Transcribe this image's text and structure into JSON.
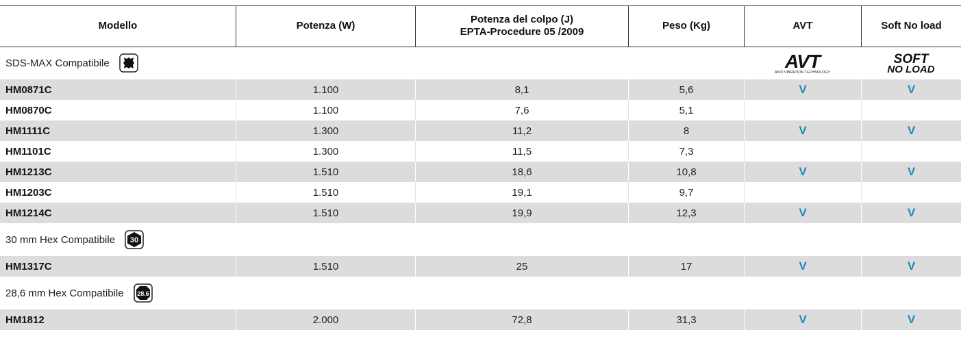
{
  "table": {
    "headers": [
      [
        "Modello"
      ],
      [
        "Potenza (W)"
      ],
      [
        "Potenza del colpo (J)",
        "EPTA-Procedure 05 /2009"
      ],
      [
        "Peso (Kg)"
      ],
      [
        "AVT"
      ],
      [
        "Soft No load"
      ]
    ],
    "sections": [
      {
        "title": "SDS-MAX Compatibile",
        "avt_logo": {
          "text": "AVT",
          "tagline": "ANTI VIBRATION TECHNOLOGY"
        },
        "soft_logo": [
          "SOFT",
          "NO LOAD"
        ],
        "rows": [
          [
            "HM0871C",
            "1.100",
            "8,1",
            "5,6",
            "V",
            "V"
          ],
          [
            "HM0870C",
            "1.100",
            "7,6",
            "5,1",
            null,
            null
          ],
          [
            "HM1111C",
            "1.300",
            "11,2",
            "8",
            "V",
            "V"
          ],
          [
            "HM1101C",
            "1.300",
            "11,5",
            "7,3",
            null,
            null
          ],
          [
            "HM1213C",
            "1.510",
            "18,6",
            "10,8",
            "V",
            "V"
          ],
          [
            "HM1203C",
            "1.510",
            "19,1",
            "9,7",
            null,
            null
          ],
          [
            "HM1214C",
            "1.510",
            "19,9",
            "12,3",
            "V",
            "V"
          ]
        ]
      },
      {
        "title": "30 mm Hex Compatibile",
        "badge": "30",
        "rows": [
          [
            "HM1317C",
            "1.510",
            "25",
            "17",
            "V",
            "V"
          ]
        ]
      },
      {
        "title": "28,6 mm Hex Compatibile",
        "badge": "28.6",
        "rows": [
          [
            "HM1812",
            "2.000",
            "72,8",
            "31,3",
            "V",
            "V"
          ]
        ]
      }
    ]
  }
}
